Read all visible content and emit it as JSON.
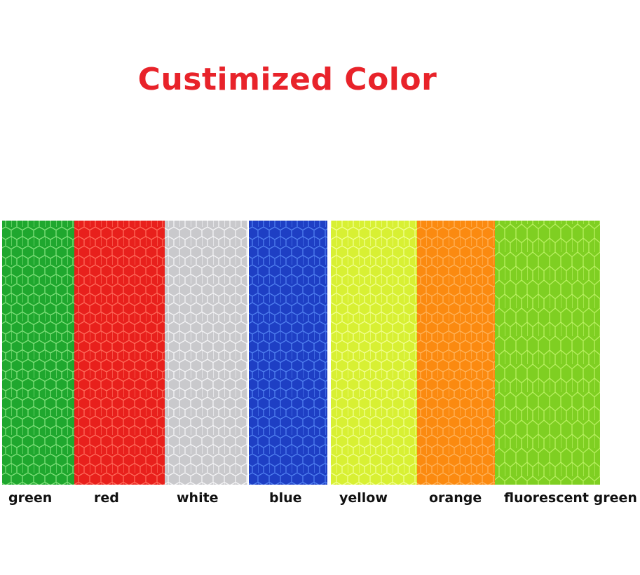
{
  "title": "Custimized Color",
  "swatches": [
    {
      "label": "green",
      "color": "#1fa72e",
      "line": "#7fe07a"
    },
    {
      "label": "red",
      "color": "#e8201c",
      "line": "#ff6a5a"
    },
    {
      "label": "white",
      "color": "#c9c9cc",
      "line": "#f4f4f6"
    },
    {
      "label": "blue",
      "color": "#1e3fc4",
      "line": "#4f7ff0"
    },
    {
      "label": "yellow",
      "color": "#d8f033",
      "line": "#f2ff90"
    },
    {
      "label": "orange",
      "color": "#fb8a10",
      "line": "#ffb35a"
    },
    {
      "label": "fluorescent green",
      "color": "#7fcf22",
      "line": "#b8f060"
    }
  ]
}
